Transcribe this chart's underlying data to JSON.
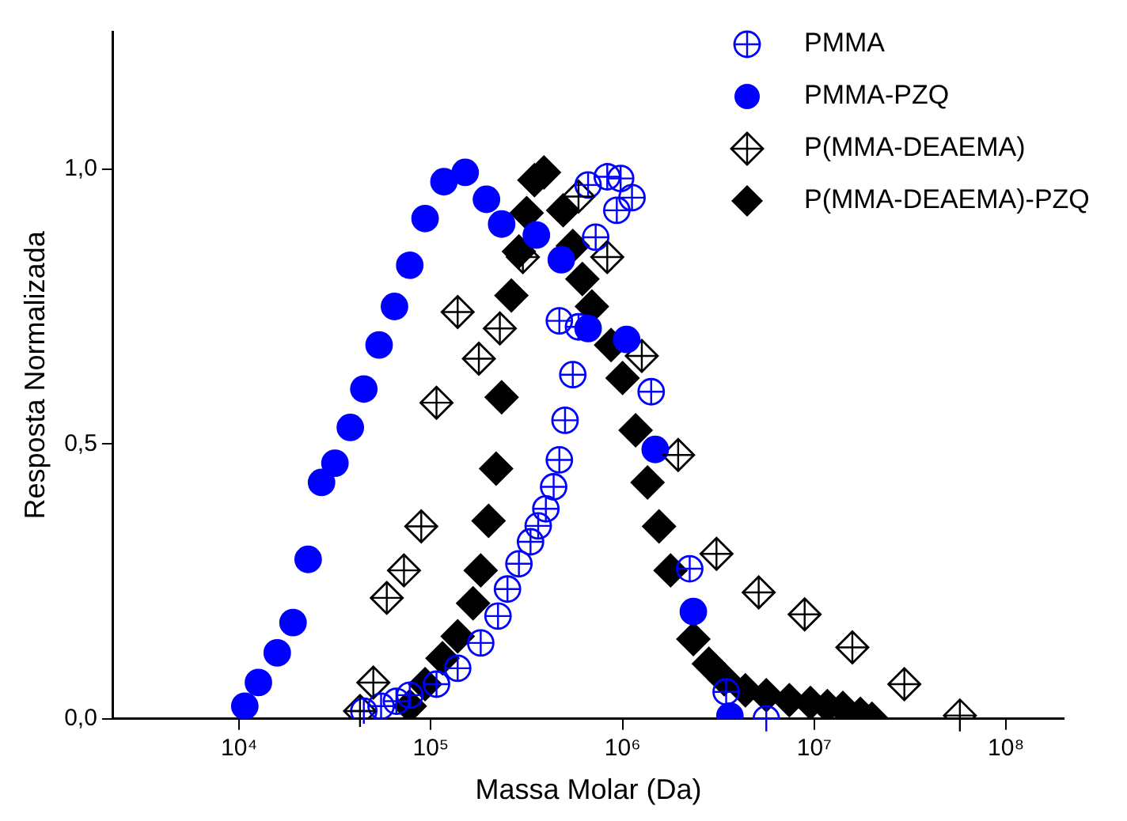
{
  "chart_data": {
    "type": "scatter",
    "xlabel": "Massa Molar (Da)",
    "ylabel": "Resposta Normalizada",
    "log": "x",
    "xlim": [
      2200,
      200000000.0
    ],
    "ylim": [
      0,
      1.25
    ],
    "xticks": [
      {
        "value": 10000.0,
        "label": "10⁴"
      },
      {
        "value": 100000.0,
        "label": "10⁵"
      },
      {
        "value": 1000000.0,
        "label": "10⁶"
      },
      {
        "value": 10000000.0,
        "label": "10⁷"
      },
      {
        "value": 100000000.0,
        "label": "10⁸"
      }
    ],
    "yticks": [
      {
        "value": 0,
        "label": "0,0"
      },
      {
        "value": 0.5,
        "label": "0,5"
      },
      {
        "value": 1,
        "label": "1,0"
      }
    ],
    "grid": false,
    "legend": "top right",
    "series": [
      {
        "name": "PMMA",
        "color": "#0000ff",
        "marker": "circle",
        "x": [
          44700.0,
          55000.0,
          66100.0,
          77600.0,
          107000.0,
          138000.0,
          182000.0,
          224000.0,
          251000.0,
          288000.0,
          331000.0,
          363000.0,
          398000.0,
          437000.0,
          468000.0,
          501000.0,
          550000.0,
          468000.0,
          589000.0,
          724000.0,
          661000.0,
          832000.0,
          977000.0,
          933000.0,
          1120000.0,
          1410000.0,
          2240000.0,
          3470000.0,
          5620000.0
        ],
        "values": [
          0.014,
          0.023,
          0.032,
          0.043,
          0.063,
          0.092,
          0.138,
          0.187,
          0.236,
          0.282,
          0.322,
          0.351,
          0.382,
          0.422,
          0.471,
          0.543,
          0.626,
          0.724,
          0.713,
          0.876,
          0.971,
          0.986,
          0.983,
          0.925,
          0.948,
          0.595,
          0.273,
          0.049,
          0
        ]
      },
      {
        "name": "PMMA-PZQ",
        "color": "#0000ff",
        "marker": "circle",
        "x": [
          10700.0,
          12600.0,
          15800.0,
          19100.0,
          22900.0,
          26900.0,
          31600.0,
          38000.0,
          44700.0,
          53700.0,
          64600.0,
          77600.0,
          93300.0,
          117000.0,
          151000.0,
          195000.0,
          234000.0,
          355000.0,
          479000.0,
          661000.0,
          1050000.0,
          1480000.0,
          2340000.0,
          3630000.0
        ],
        "values": [
          0.023,
          0.066,
          0.12,
          0.175,
          0.29,
          0.43,
          0.465,
          0.53,
          0.6,
          0.68,
          0.75,
          0.825,
          0.91,
          0.977,
          0.994,
          0.945,
          0.9,
          0.88,
          0.835,
          0.71,
          0.69,
          0.49,
          0.195,
          0.005
        ]
      },
      {
        "name": "P(MMA-DEAEMA)",
        "color": "#000000",
        "marker": "diamond",
        "x": [
          42700.0,
          50100.0,
          58900.0,
          72400.0,
          89100.0,
          107000.0,
          138000.0,
          178000.0,
          229000.0,
          302000.0,
          589000.0,
          832000.0,
          1260000.0,
          1950000.0,
          3090000.0,
          5130000.0,
          8910000.0,
          15800000.0,
          29500000.0,
          57500000.0
        ],
        "values": [
          0.014,
          0.066,
          0.22,
          0.27,
          0.35,
          0.575,
          0.74,
          0.655,
          0.71,
          0.84,
          0.95,
          0.84,
          0.66,
          0.48,
          0.3,
          0.23,
          0.19,
          0.13,
          0.063,
          0.006
        ]
      },
      {
        "name": "P(MMA-DEAEMA)-PZQ",
        "color": "#000000",
        "marker": "diamond",
        "x": [
          77600.0,
          93300.0,
          115000.0,
          138000.0,
          166000.0,
          182000.0,
          200000.0,
          219000.0,
          234000.0,
          263000.0,
          288000.0,
          316000.0,
          389000.0,
          347000.0,
          490000.0,
          550000.0,
          617000.0,
          692000.0,
          794000.0,
          871000.0,
          1000000.0,
          1170000.0,
          1350000.0,
          1550000.0,
          1780000.0,
          2090000.0,
          2340000.0,
          2820000.0,
          3390000.0,
          4370000.0,
          5620000.0,
          7410000.0,
          9550000.0,
          11700000.0,
          14100000.0,
          17400000.0,
          20000000.0
        ],
        "values": [
          0.023,
          0.063,
          0.11,
          0.15,
          0.21,
          0.27,
          0.36,
          0.455,
          0.585,
          0.77,
          0.85,
          0.92,
          0.994,
          0.98,
          0.925,
          0.86,
          0.8,
          0.75,
          null,
          0.68,
          0.62,
          0.525,
          0.43,
          0.35,
          0.27,
          null,
          0.145,
          0.1,
          0.072,
          0.052,
          0.043,
          0.034,
          0.029,
          0.023,
          0.02,
          0.009,
          0
        ]
      }
    ]
  }
}
